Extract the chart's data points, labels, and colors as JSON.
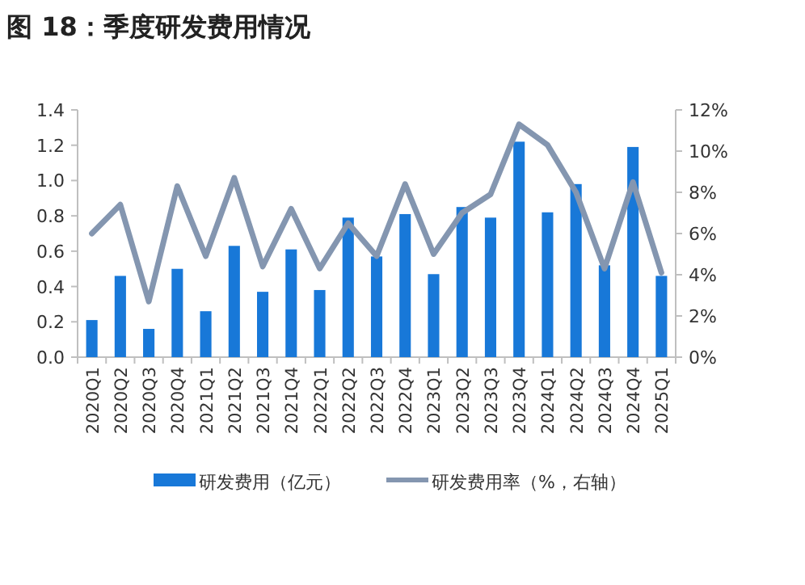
{
  "chart_data": {
    "type": "bar",
    "title": "图 18：季度研发费用情况",
    "categories": [
      "2020Q1",
      "2020Q2",
      "2020Q3",
      "2020Q4",
      "2021Q1",
      "2021Q2",
      "2021Q3",
      "2021Q4",
      "2022Q1",
      "2022Q2",
      "2022Q3",
      "2022Q4",
      "2023Q1",
      "2023Q2",
      "2023Q3",
      "2023Q4",
      "2024Q1",
      "2024Q2",
      "2024Q3",
      "2024Q4",
      "2025Q1"
    ],
    "series": [
      {
        "name": "研发费用（亿元）",
        "color": "#1878d8",
        "values": [
          0.21,
          0.46,
          0.16,
          0.5,
          0.26,
          0.63,
          0.37,
          0.61,
          0.38,
          0.79,
          0.57,
          0.81,
          0.47,
          0.85,
          0.79,
          1.22,
          0.82,
          0.98,
          0.52,
          1.19,
          0.46
        ]
      },
      {
        "name": "研发费用率（%，右轴）",
        "type": "line",
        "axis": "y2",
        "color": "#8496b0",
        "values": [
          6.0,
          7.4,
          2.7,
          8.3,
          4.9,
          8.7,
          4.4,
          7.2,
          4.3,
          6.5,
          4.9,
          8.4,
          5.0,
          7.0,
          7.9,
          11.3,
          10.3,
          8.0,
          4.3,
          8.5,
          4.1
        ]
      }
    ],
    "ylim": [
      0,
      1.4
    ],
    "yticks": [
      {
        "value": 0,
        "label": "0.0"
      },
      {
        "value": 0.2,
        "label": "0.2"
      },
      {
        "value": 0.4,
        "label": "0.4"
      },
      {
        "value": 0.6,
        "label": "0.6"
      },
      {
        "value": 0.8,
        "label": "0.8"
      },
      {
        "value": 1.0,
        "label": "1.0"
      },
      {
        "value": 1.2,
        "label": "1.2"
      },
      {
        "value": 1.4,
        "label": "1.4"
      }
    ],
    "y2lim": [
      0,
      12
    ],
    "y2ticks": [
      {
        "value": 0,
        "label": "0%"
      },
      {
        "value": 2,
        "label": "2%"
      },
      {
        "value": 4,
        "label": "4%"
      },
      {
        "value": 6,
        "label": "6%"
      },
      {
        "value": 8,
        "label": "8%"
      },
      {
        "value": 10,
        "label": "10%"
      },
      {
        "value": 12,
        "label": "12%"
      }
    ],
    "grid": false,
    "legend": "bottom",
    "marker": "none",
    "line_style": "solid"
  }
}
